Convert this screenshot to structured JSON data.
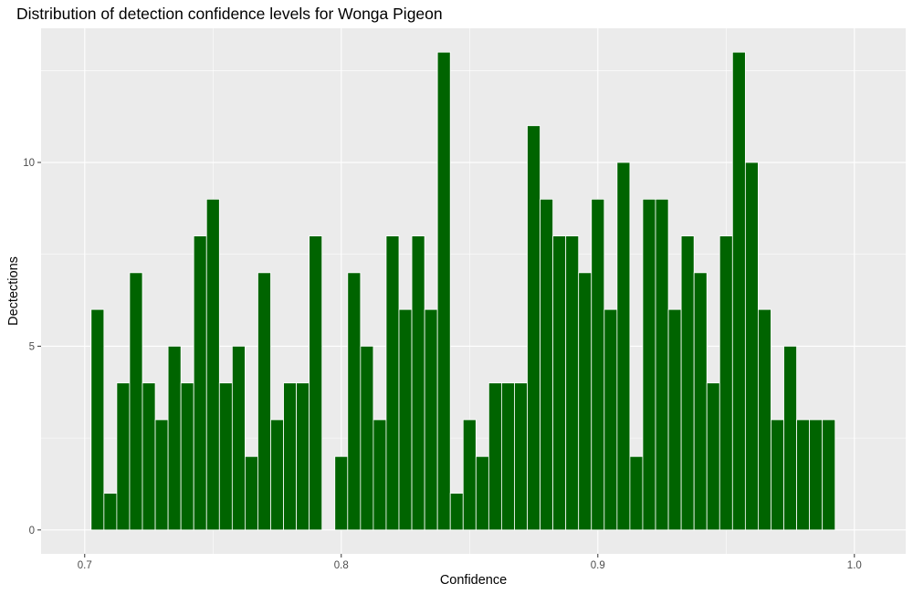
{
  "chart_data": {
    "type": "bar",
    "title": "Distribution of detection confidence levels for Wonga Pigeon",
    "xlabel": "Confidence",
    "ylabel": "Dectections",
    "bar_color": "#006400",
    "panel_color": "#EBEBEB",
    "grid": true,
    "xlim": [
      0.683,
      1.02
    ],
    "ylim": [
      -0.65,
      13.65
    ],
    "x_ticks": [
      0.7,
      0.8,
      0.9,
      1.0
    ],
    "x_tick_labels": [
      "0.7",
      "0.8",
      "0.9",
      "1.0"
    ],
    "y_ticks": [
      0,
      5,
      10
    ],
    "y_tick_labels": [
      "0",
      "5",
      "10"
    ],
    "bin_start": 0.7025,
    "bin_width": 0.005,
    "values": [
      6,
      1,
      4,
      7,
      4,
      3,
      5,
      4,
      8,
      9,
      4,
      5,
      2,
      7,
      3,
      4,
      4,
      8,
      0,
      2,
      7,
      5,
      3,
      8,
      6,
      8,
      6,
      13,
      1,
      3,
      2,
      4,
      4,
      4,
      11,
      9,
      8,
      8,
      7,
      9,
      6,
      10,
      2,
      9,
      9,
      6,
      8,
      7,
      4,
      8,
      13,
      10,
      6,
      3,
      5,
      3,
      3,
      3
    ]
  }
}
